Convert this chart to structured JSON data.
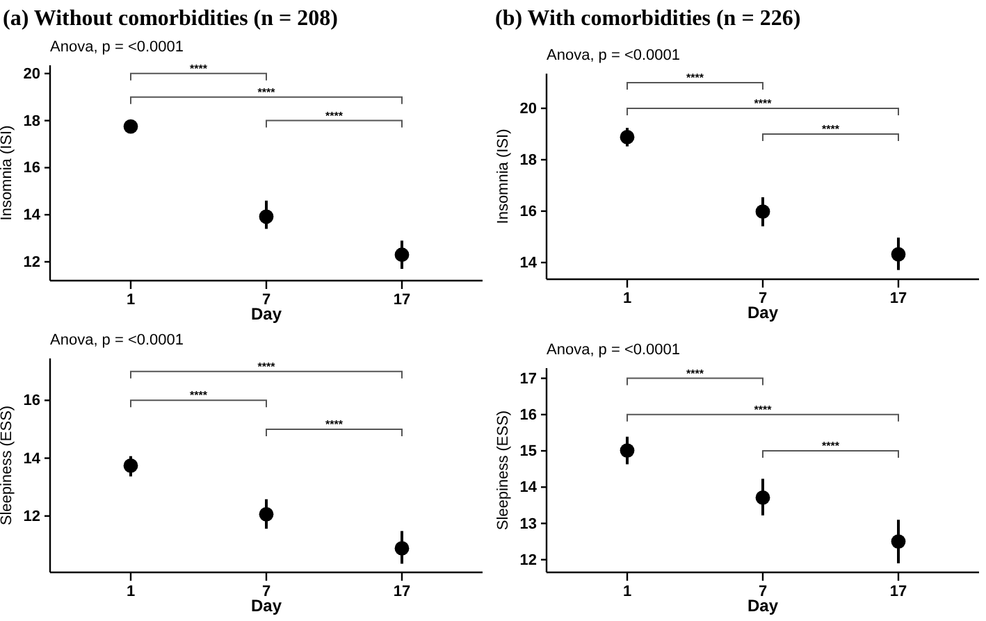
{
  "chart_data": [
    {
      "type": "scatter",
      "title": "(a) Without comorbidities (n = 208)",
      "subtitle": "Anova, p = <0.0001",
      "xlabel": "Day",
      "ylabel": "Insomnia (ISI)",
      "categories": [
        "1",
        "7",
        "17"
      ],
      "values": [
        17.75,
        13.92,
        12.3
      ],
      "errors": [
        [
          17.47,
          18.04
        ],
        [
          13.4,
          14.6
        ],
        [
          11.7,
          12.9
        ]
      ],
      "color": "#000000",
      "marker": "circle",
      "ylim": [
        11.2,
        20.35
      ],
      "yticks": [
        12,
        14,
        16,
        18,
        20
      ],
      "grid": false,
      "annotations": [
        "****",
        "****",
        "****"
      ]
    },
    {
      "type": "scatter",
      "title": "(b) With comorbidities (n = 226)",
      "subtitle": "Anova, p = <0.0001",
      "xlabel": "Day",
      "ylabel": "Insomnia (ISI)",
      "categories": [
        "1",
        "7",
        "17"
      ],
      "values": [
        18.88,
        15.98,
        14.32
      ],
      "errors": [
        [
          18.52,
          19.24
        ],
        [
          15.41,
          16.54
        ],
        [
          13.71,
          14.97
        ]
      ],
      "color": "#000000",
      "marker": "circle",
      "ylim": [
        13.35,
        21.35
      ],
      "yticks": [
        14,
        16,
        18,
        20
      ],
      "grid": false,
      "annotations": [
        "****",
        "****",
        "****"
      ]
    },
    {
      "type": "scatter",
      "subtitle": "Anova, p = <0.0001",
      "xlabel": "Day",
      "ylabel": "Sleepiness (ESS)",
      "categories": [
        "1",
        "7",
        "17"
      ],
      "values": [
        13.74,
        12.06,
        10.88
      ],
      "errors": [
        [
          13.37,
          14.07
        ],
        [
          11.56,
          12.58
        ],
        [
          10.35,
          11.48
        ]
      ],
      "color": "#000000",
      "marker": "circle",
      "ylim": [
        10.05,
        17.45
      ],
      "yticks": [
        12,
        14,
        16
      ],
      "grid": false,
      "annotations": [
        "****",
        "****",
        "****"
      ]
    },
    {
      "type": "scatter",
      "subtitle": "Anova, p = <0.0001",
      "xlabel": "Day",
      "ylabel": "Sleepiness (ESS)",
      "categories": [
        "1",
        "7",
        "17"
      ],
      "values": [
        15.01,
        13.71,
        12.5
      ],
      "errors": [
        [
          14.63,
          15.39
        ],
        [
          13.22,
          14.23
        ],
        [
          11.9,
          13.1
        ]
      ],
      "color": "#000000",
      "marker": "circle",
      "ylim": [
        11.65,
        17.28
      ],
      "yticks": [
        12,
        13,
        14,
        15,
        16,
        17
      ],
      "grid": false,
      "annotations": [
        "****",
        "****",
        "****"
      ]
    }
  ]
}
